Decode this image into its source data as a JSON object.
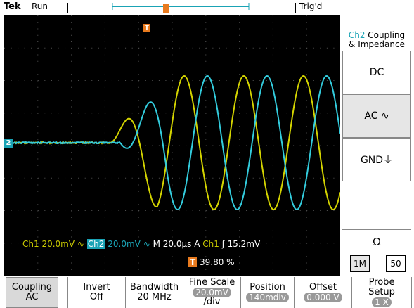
{
  "topbar": {
    "brand": "Tek",
    "run_state": "Run",
    "trigger_state": "Trig'd"
  },
  "channel_marker": "2",
  "trigger_marker": "T",
  "readout": {
    "ch1_label": "Ch1",
    "ch1_scale": "20.0mV",
    "ch2_label": "Ch2",
    "ch2_scale": "20.0mV",
    "timebase": "M 20.0µs",
    "acq_mode": "A",
    "trig_source": "Ch1",
    "trig_slope": "ʃ",
    "trig_level": "15.2mV",
    "trig_position": "39.80 %"
  },
  "right_menu": {
    "title_channel": "Ch2",
    "title_line1": "Coupling",
    "title_line2": "& Impedance",
    "options": [
      "DC",
      "AC ∿",
      "GND⏚"
    ],
    "selected_index": 1,
    "impedance_symbol": "Ω",
    "impedance_options": [
      "1M",
      "50"
    ],
    "impedance_selected": 0
  },
  "bottom_menu": [
    {
      "line1": "Coupling",
      "line2": "AC"
    },
    {
      "line1": "Invert",
      "line2": "Off"
    },
    {
      "line1": "Bandwidth",
      "line2": "20 MHz"
    },
    {
      "line1": "Fine Scale",
      "line2": "20.0mV",
      "line3": "/div"
    },
    {
      "line1": "Position",
      "line2": "140mdiv"
    },
    {
      "line1": "Offset",
      "line2": "0.000 V"
    },
    {
      "line1": "Probe",
      "line2": "Setup",
      "line3": "1 X"
    }
  ],
  "colors": {
    "ch1": "#d4d400",
    "ch2": "#33ccdd",
    "marker_orange": "#e87a1e",
    "marker_cyan": "#1aa3b5"
  }
}
